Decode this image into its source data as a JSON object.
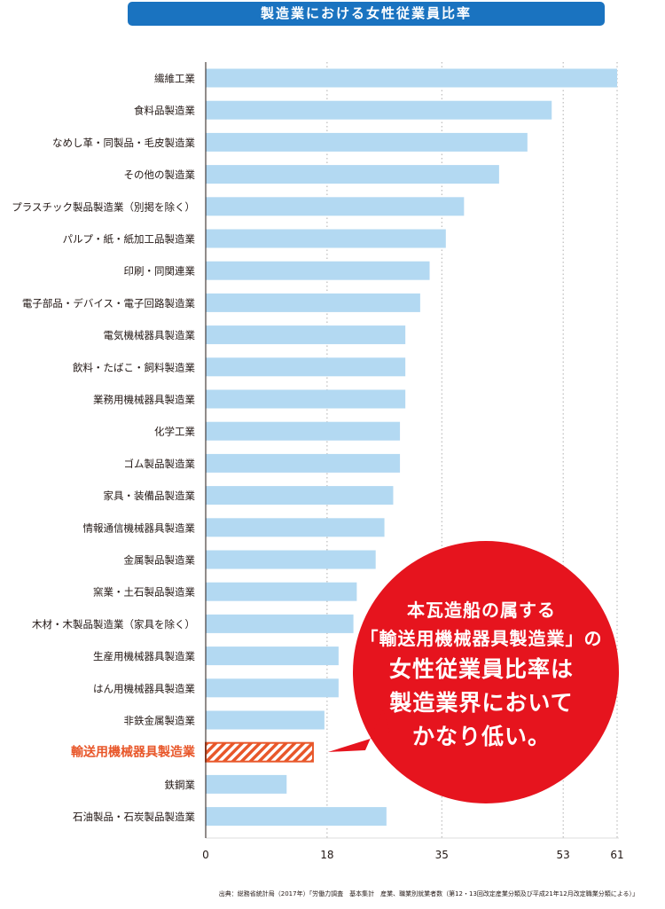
{
  "header": {
    "title": "製造業における女性従業員比率"
  },
  "callout": {
    "line1": "本瓦造船の属する",
    "line2": "「輸送用機械器具製造業」の",
    "line3": "女性従業員比率は",
    "line4": "製造業界においてかなり低い。"
  },
  "source": "出典：総務省統計局（2017年）「労働力調査　基本集計　産業、職業別就業者数（第12・13回改定産業分類及び平成21年12月改定職業分類による）」",
  "colors": {
    "bar": "#b3d9f2",
    "highlight": "#e8572a",
    "callout": "#e6141e",
    "title_bg": "#1a73c0"
  },
  "chart_data": {
    "type": "bar",
    "orientation": "horizontal",
    "title": "製造業における女性従業員比率",
    "xlabel": "",
    "ylabel": "",
    "xlim": [
      0,
      61
    ],
    "xticks": [
      0,
      18,
      35,
      53,
      61
    ],
    "grid": true,
    "categories": [
      "繊維工業",
      "食料品製造業",
      "なめし革・同製品・毛皮製造業",
      "その他の製造業",
      "プラスチック製品製造業（別掲を除く）",
      "パルプ・紙・紙加工品製造業",
      "印刷・同関連業",
      "電子部品・デバイス・電子回路製造業",
      "電気機械器具製造業",
      "飲料・たばこ・飼料製造業",
      "業務用機械器具製造業",
      "化学工業",
      "ゴム製品製造業",
      "家具・装備品製造業",
      "情報通信機械器具製造業",
      "金属製品製造業",
      "窯業・土石製品製造業",
      "木材・木製品製造業（家具を除く）",
      "生産用機械器具製造業",
      "はん用機械器具製造業",
      "非鉄金属製造業",
      "輸送用機械器具製造業",
      "鉄鋼業",
      "石油製品・石炭製品製造業"
    ],
    "values": [
      61,
      51.3,
      47.7,
      43.5,
      38.3,
      35.6,
      33.2,
      31.8,
      29.6,
      29.6,
      29.6,
      28.8,
      28.8,
      27.8,
      26.5,
      25.2,
      22.4,
      21.9,
      19.7,
      19.7,
      17.6,
      15.9,
      12.0,
      26.8
    ],
    "highlight_index": 21
  }
}
